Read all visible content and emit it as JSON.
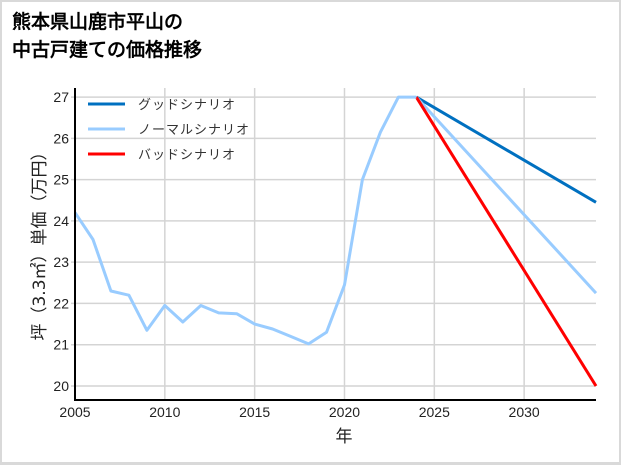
{
  "title": {
    "line1": "熊本県山鹿市平山の",
    "line2": "中古戸建ての価格推移"
  },
  "colors": {
    "good": "#0070c0",
    "normal": "#99ccff",
    "bad": "#ff0000",
    "grid": "#d4d4d4",
    "border": "#d9d9d9"
  },
  "chart_data": {
    "type": "line",
    "title": "熊本県山鹿市平山の中古戸建ての価格推移",
    "xlabel": "年",
    "ylabel": "坪（3.3㎡）単価（万円）",
    "xlim": [
      2005,
      2034
    ],
    "ylim": [
      19.66,
      27.22
    ],
    "x_ticks": [
      2005,
      2010,
      2015,
      2020,
      2025,
      2030
    ],
    "y_ticks": [
      20,
      21,
      22,
      23,
      24,
      25,
      26,
      27
    ],
    "grid": true,
    "legend_position": "upper left",
    "legend": [
      "グッドシナリオ",
      "ノーマルシナリオ",
      "バッドシナリオ"
    ],
    "series": [
      {
        "name": "historical",
        "color": "#99ccff",
        "x": [
          2005,
          2006,
          2007,
          2008,
          2009,
          2010,
          2011,
          2012,
          2013,
          2014,
          2015,
          2016,
          2017,
          2018,
          2019,
          2020,
          2021,
          2022,
          2023,
          2024
        ],
        "values": [
          24.2,
          23.55,
          22.3,
          22.2,
          21.35,
          21.95,
          21.55,
          21.95,
          21.77,
          21.75,
          21.5,
          21.38,
          21.2,
          21.02,
          21.3,
          22.45,
          25.0,
          26.15,
          27.0,
          27.0
        ]
      },
      {
        "name": "グッドシナリオ",
        "color": "#0070c0",
        "x": [
          2024,
          2034
        ],
        "values": [
          27.0,
          24.45
        ]
      },
      {
        "name": "ノーマルシナリオ",
        "color": "#99ccff",
        "x": [
          2024,
          2034
        ],
        "values": [
          27.0,
          22.25
        ]
      },
      {
        "name": "バッドシナリオ",
        "color": "#ff0000",
        "x": [
          2024,
          2034
        ],
        "values": [
          27.0,
          20.0
        ]
      }
    ]
  }
}
